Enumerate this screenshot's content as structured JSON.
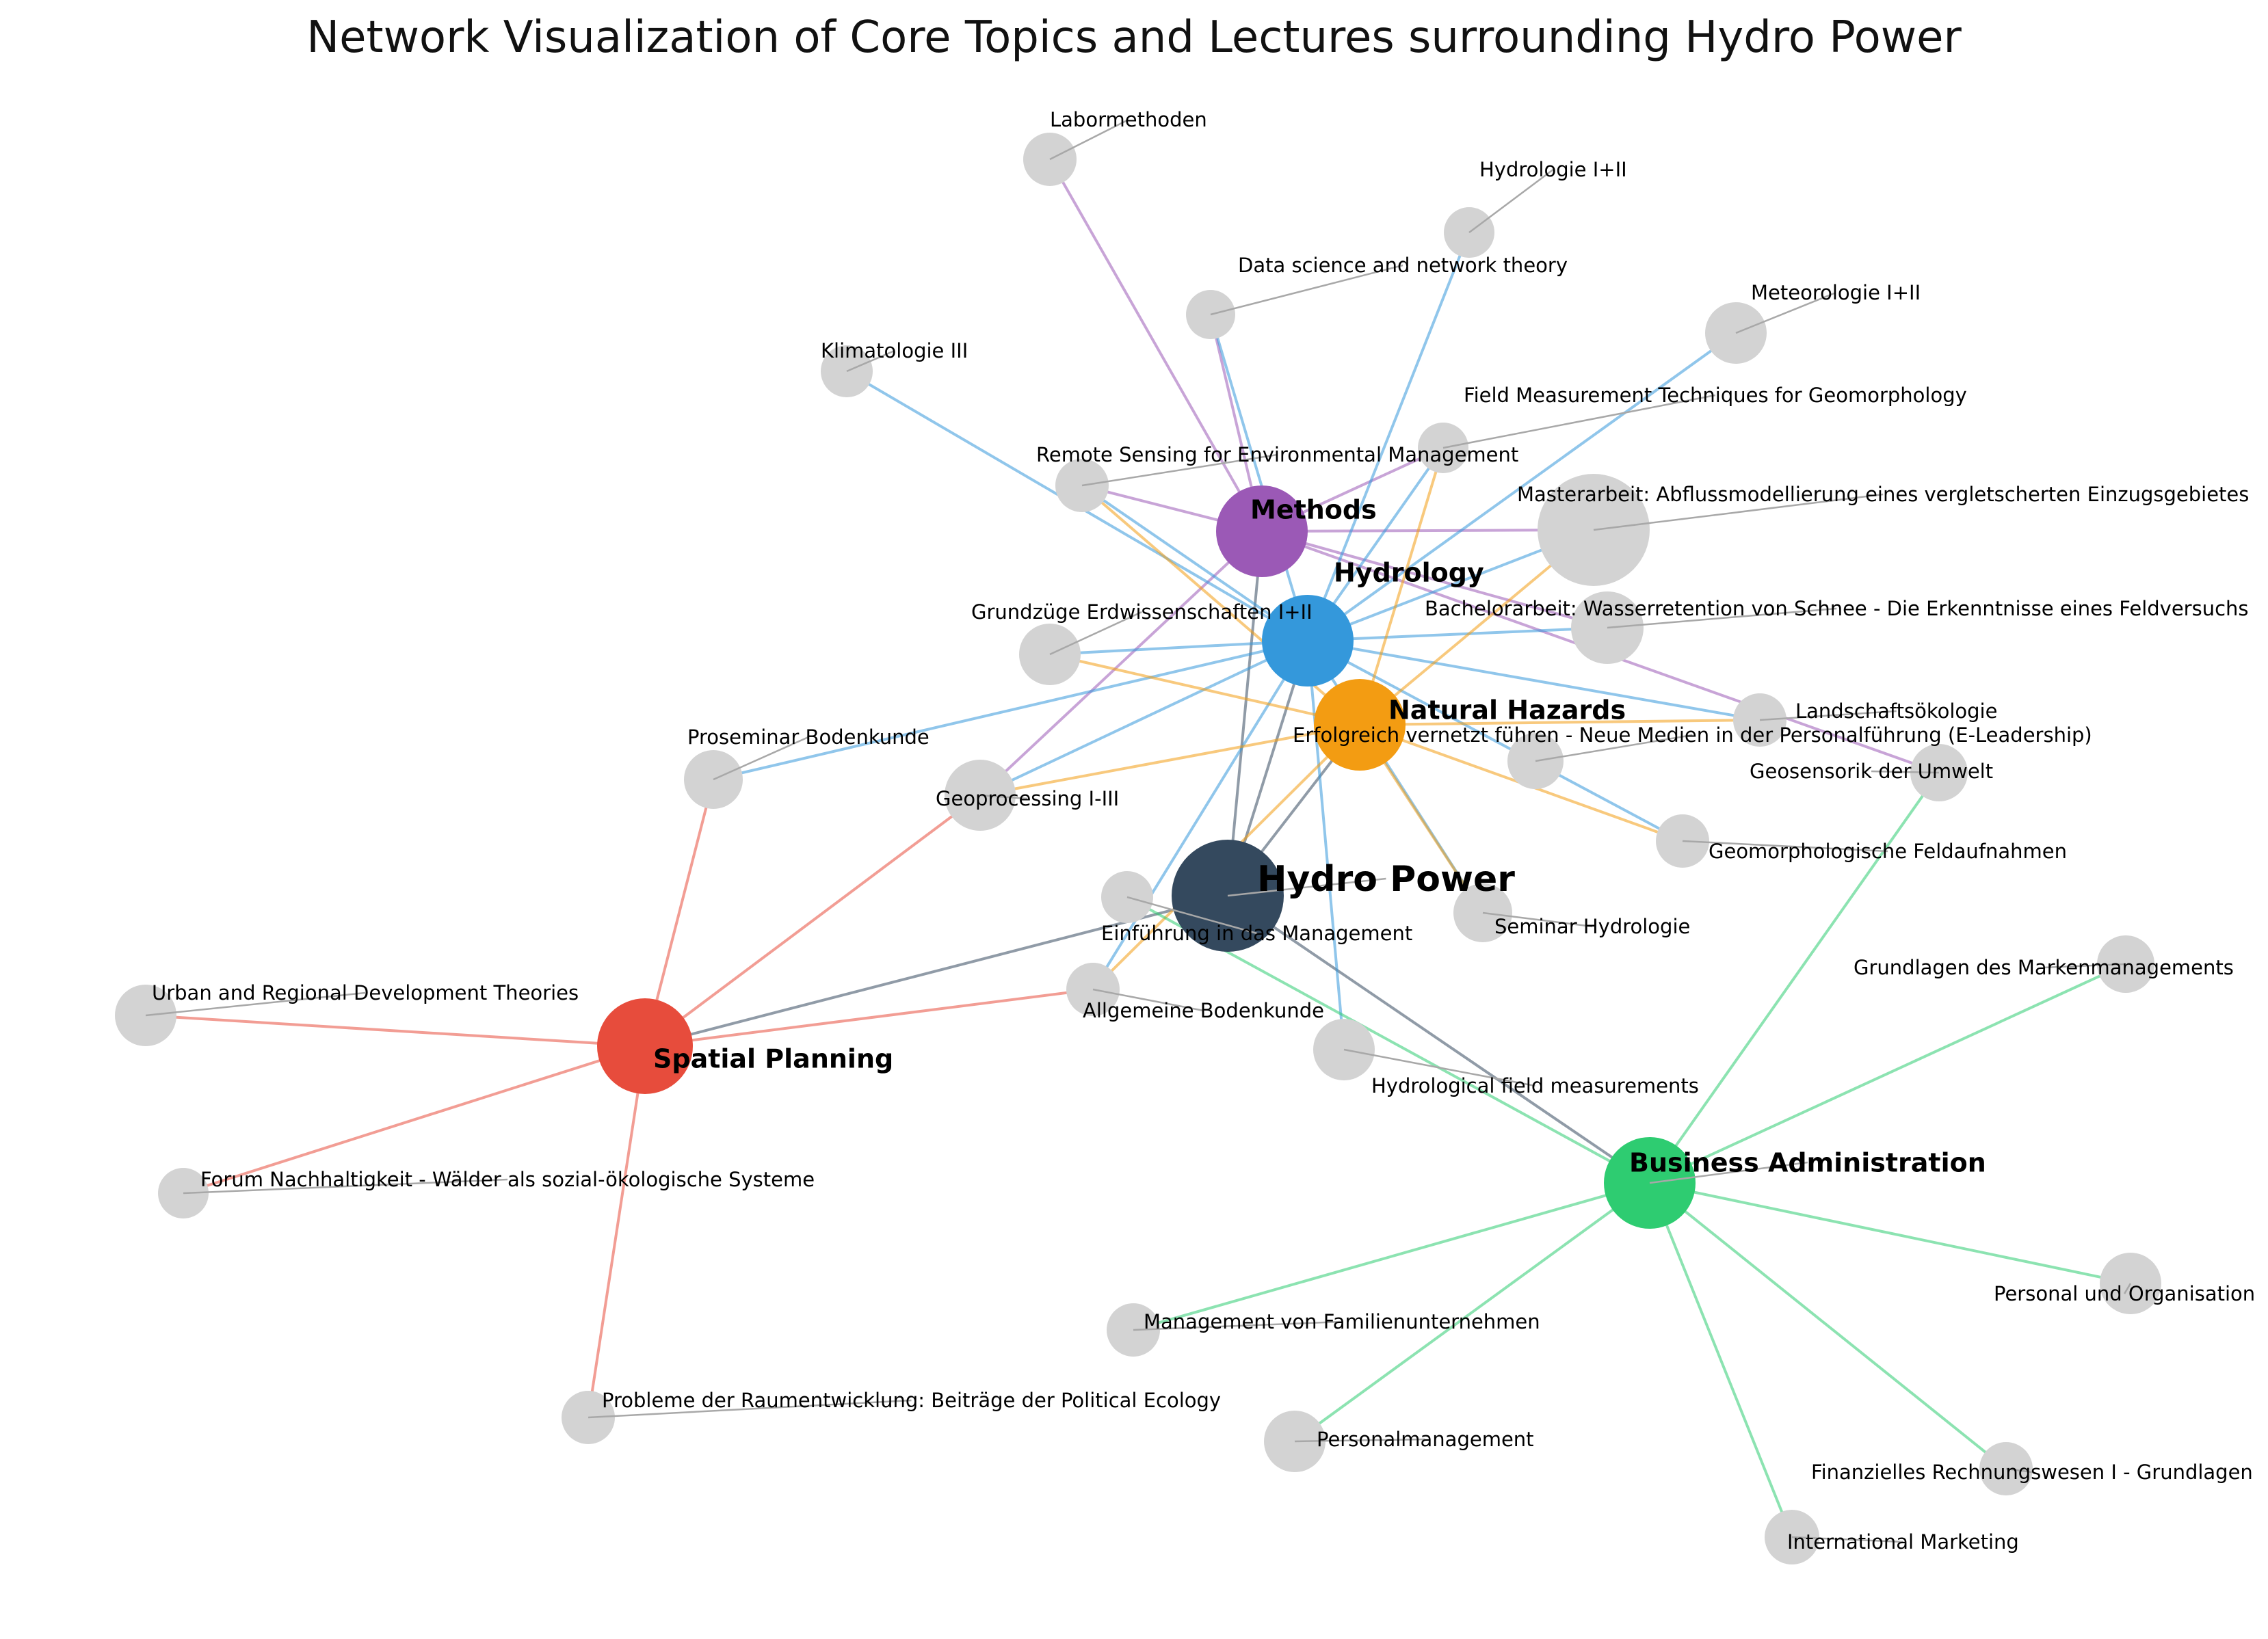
{
  "title": "Network Visualization of Core Topics and Lectures surrounding Hydro Power",
  "colors": {
    "hydro_power": "#34495e",
    "methods": "#9b59b6",
    "hydrology": "#3498db",
    "natural_hazards": "#f39c12",
    "spatial_planning": "#e74c3c",
    "business_administration": "#2ecc71",
    "lecture": "#d3d3d3",
    "leader": "#a8a8a8"
  },
  "hubs": [
    {
      "id": "hp",
      "label": "Hydro Power",
      "color_key": "hydro_power"
    },
    {
      "id": "me",
      "label": "Methods",
      "color_key": "methods"
    },
    {
      "id": "hy",
      "label": "Hydrology",
      "color_key": "hydrology"
    },
    {
      "id": "nh",
      "label": "Natural Hazards",
      "color_key": "natural_hazards"
    },
    {
      "id": "sp",
      "label": "Spatial Planning",
      "color_key": "spatial_planning"
    },
    {
      "id": "ba",
      "label": "Business Administration",
      "color_key": "business_administration"
    }
  ],
  "lectures": [
    {
      "id": "l01",
      "label": "Labormethoden"
    },
    {
      "id": "l02",
      "label": "Hydrologie I+II"
    },
    {
      "id": "l03",
      "label": "Data science and network theory"
    },
    {
      "id": "l04",
      "label": "Meteorologie I+II"
    },
    {
      "id": "l05",
      "label": "Klimatologie III"
    },
    {
      "id": "l06",
      "label": "Field Measurement Techniques for Geomorphology"
    },
    {
      "id": "l07",
      "label": "Remote Sensing for Environmental Management"
    },
    {
      "id": "l08",
      "label": "Masterarbeit: Abflussmodellierung eines vergletscherten Einzugsgebietes"
    },
    {
      "id": "l09",
      "label": "Bachelorarbeit: Wasserretention von Schnee - Die Erkenntnisse eines Feldversuchs"
    },
    {
      "id": "l10",
      "label": "Grundzüge Erdwissenschaften I+II"
    },
    {
      "id": "l11",
      "label": "Landschaftsökologie"
    },
    {
      "id": "l12",
      "label": "Erfolgreich vernetzt führen - Neue Medien in der Personalführung (E-Leadership)"
    },
    {
      "id": "l13",
      "label": "Proseminar Bodenkunde"
    },
    {
      "id": "l14",
      "label": "Geosensorik der Umwelt"
    },
    {
      "id": "l15",
      "label": "Geoprocessing I-III"
    },
    {
      "id": "l16",
      "label": "Geomorphologische Feldaufnahmen"
    },
    {
      "id": "l17",
      "label": "Seminar Hydrologie"
    },
    {
      "id": "l18",
      "label": "Einführung in das Management"
    },
    {
      "id": "l19",
      "label": "Grundlagen des Markenmanagements"
    },
    {
      "id": "l20",
      "label": "Urban and Regional Development Theories"
    },
    {
      "id": "l21",
      "label": "Allgemeine Bodenkunde"
    },
    {
      "id": "l22",
      "label": "Hydrological field measurements"
    },
    {
      "id": "l23",
      "label": "Forum Nachhaltigkeit - Wälder als sozial-ökologische Systeme"
    },
    {
      "id": "l24",
      "label": "Personal und Organisation"
    },
    {
      "id": "l25",
      "label": "Management von Familienunternehmen"
    },
    {
      "id": "l26",
      "label": "Probleme der Raumentwicklung: Beiträge der Political Ecology"
    },
    {
      "id": "l27",
      "label": "Personalmanagement"
    },
    {
      "id": "l28",
      "label": "Finanzielles Rechnungswesen I - Grundlagen"
    },
    {
      "id": "l29",
      "label": "International Marketing"
    }
  ],
  "edges": [
    [
      "hp",
      "me"
    ],
    [
      "hp",
      "hy"
    ],
    [
      "hp",
      "nh"
    ],
    [
      "hp",
      "sp"
    ],
    [
      "hp",
      "ba"
    ],
    [
      "me",
      "l01"
    ],
    [
      "me",
      "l03"
    ],
    [
      "me",
      "l07"
    ],
    [
      "me",
      "l06"
    ],
    [
      "me",
      "l08"
    ],
    [
      "me",
      "l09"
    ],
    [
      "me",
      "l15"
    ],
    [
      "me",
      "l14"
    ],
    [
      "hy",
      "l02"
    ],
    [
      "hy",
      "l03"
    ],
    [
      "hy",
      "l04"
    ],
    [
      "hy",
      "l05"
    ],
    [
      "hy",
      "l06"
    ],
    [
      "hy",
      "l07"
    ],
    [
      "hy",
      "l08"
    ],
    [
      "hy",
      "l09"
    ],
    [
      "hy",
      "l10"
    ],
    [
      "hy",
      "l11"
    ],
    [
      "hy",
      "l13"
    ],
    [
      "hy",
      "l15"
    ],
    [
      "hy",
      "l16"
    ],
    [
      "hy",
      "l17"
    ],
    [
      "hy",
      "l21"
    ],
    [
      "hy",
      "l22"
    ],
    [
      "nh",
      "l06"
    ],
    [
      "nh",
      "l07"
    ],
    [
      "nh",
      "l08"
    ],
    [
      "nh",
      "l10"
    ],
    [
      "nh",
      "l11"
    ],
    [
      "nh",
      "l15"
    ],
    [
      "nh",
      "l16"
    ],
    [
      "nh",
      "l17"
    ],
    [
      "nh",
      "l21"
    ],
    [
      "sp",
      "l13"
    ],
    [
      "sp",
      "l15"
    ],
    [
      "sp",
      "l20"
    ],
    [
      "sp",
      "l21"
    ],
    [
      "sp",
      "l23"
    ],
    [
      "sp",
      "l26"
    ],
    [
      "ba",
      "l14"
    ],
    [
      "ba",
      "l18"
    ],
    [
      "ba",
      "l19"
    ],
    [
      "ba",
      "l24"
    ],
    [
      "ba",
      "l25"
    ],
    [
      "ba",
      "l27"
    ],
    [
      "ba",
      "l28"
    ],
    [
      "ba",
      "l29"
    ]
  ]
}
